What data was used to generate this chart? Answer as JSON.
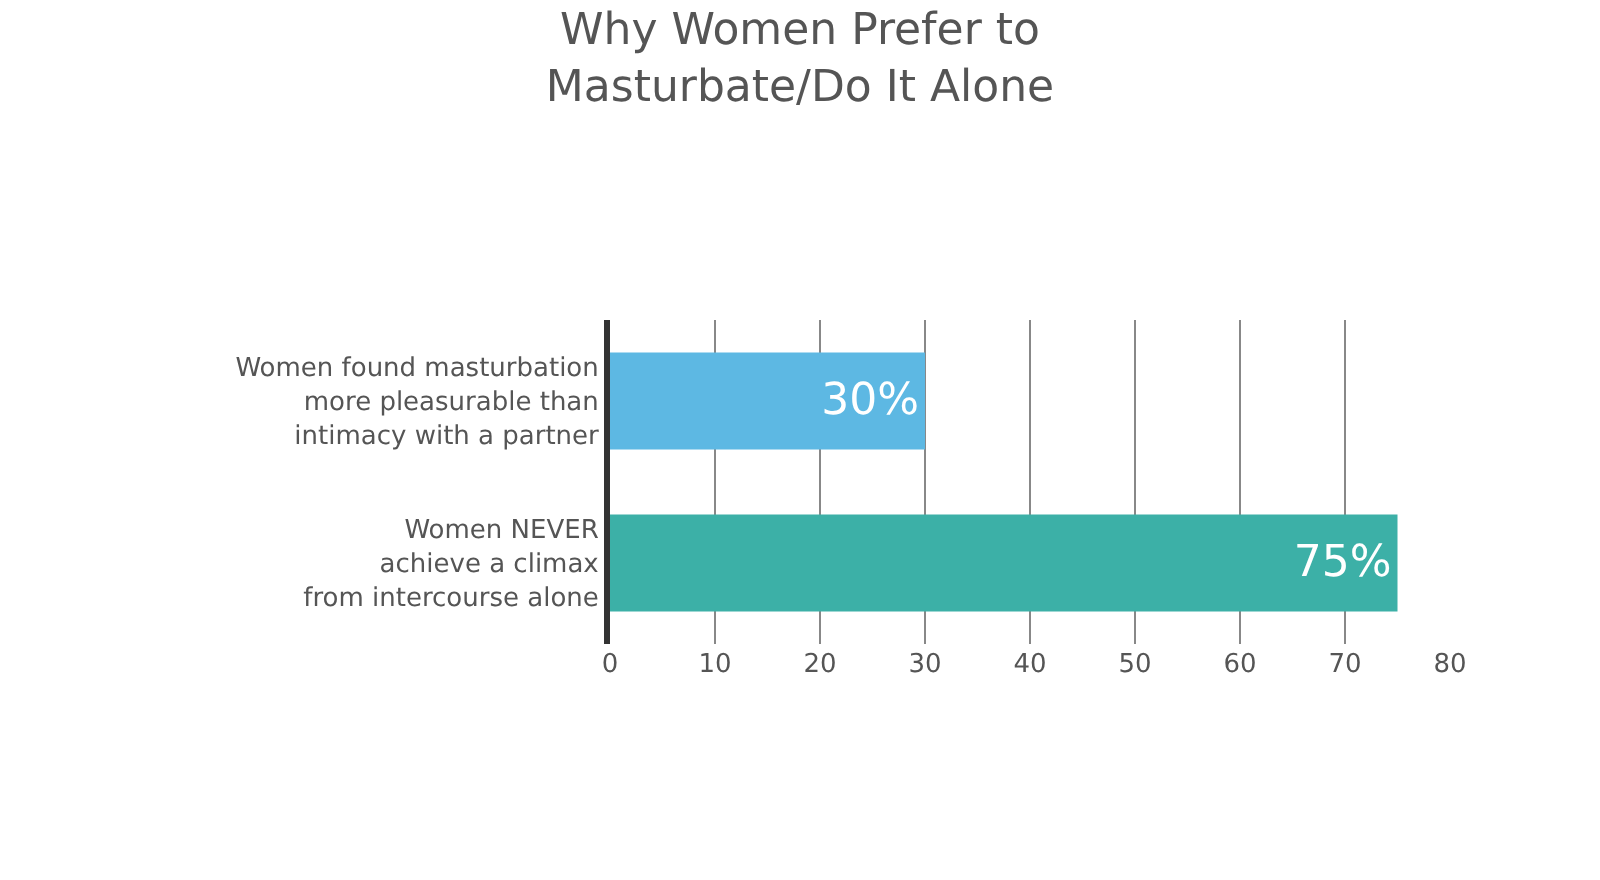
{
  "chart_data": {
    "type": "bar",
    "orientation": "horizontal",
    "title": "Why Women Prefer to\nMasturbate/Do It Alone",
    "categories": [
      "Women found masturbation\nmore pleasurable than\nintimacy with a partner",
      "Women NEVER\nachieve a climax\nfrom intercourse alone"
    ],
    "values": [
      30,
      75
    ],
    "colors": [
      "#5db8e3",
      "#3cb0a7"
    ],
    "value_labels": [
      "30%",
      "75%"
    ],
    "xlim": [
      0,
      80
    ],
    "xticks": [
      0,
      10,
      20,
      30,
      40,
      50,
      60,
      70,
      80
    ],
    "grid": "x",
    "legend": false
  }
}
